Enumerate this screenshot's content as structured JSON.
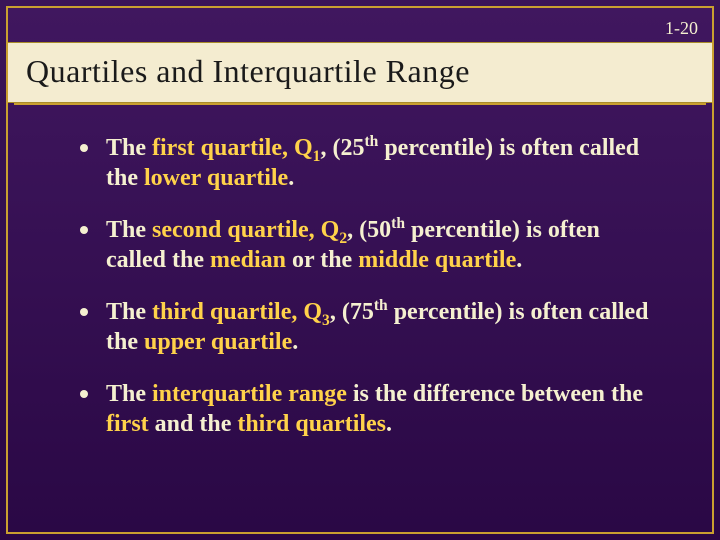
{
  "page_number": "1-20",
  "title": "Quartiles and Interquartile Range",
  "colors": {
    "background_top": "#40175f",
    "background_bottom": "#2a0845",
    "frame_border": "#c9a030",
    "title_bar_bg": "#f4ecd0",
    "title_text": "#1a1a1a",
    "body_text": "#f5f0d0",
    "highlight_text": "#ffd24a"
  },
  "typography": {
    "title_fontsize": 32,
    "body_fontsize": 24,
    "font_family": "Times New Roman"
  },
  "bullets": [
    {
      "segments": [
        {
          "text": "The "
        },
        {
          "text": "first quartile, Q",
          "highlight": true
        },
        {
          "text": "1",
          "highlight": true,
          "sub": true
        },
        {
          "text": ", (25"
        },
        {
          "text": "th",
          "sup": true
        },
        {
          "text": " percentile) is often called the "
        },
        {
          "text": "lower quartile",
          "highlight": true
        },
        {
          "text": "."
        }
      ]
    },
    {
      "segments": [
        {
          "text": "The "
        },
        {
          "text": "second quartile, Q",
          "highlight": true
        },
        {
          "text": "2",
          "highlight": true,
          "sub": true
        },
        {
          "text": ", (50"
        },
        {
          "text": "th",
          "sup": true
        },
        {
          "text": " percentile) is often called the "
        },
        {
          "text": "median",
          "highlight": true
        },
        {
          "text": " or the "
        },
        {
          "text": "middle quartile",
          "highlight": true
        },
        {
          "text": "."
        }
      ]
    },
    {
      "segments": [
        {
          "text": "The "
        },
        {
          "text": "third quartile, Q",
          "highlight": true
        },
        {
          "text": "3",
          "highlight": true,
          "sub": true
        },
        {
          "text": ", (75"
        },
        {
          "text": "th",
          "sup": true
        },
        {
          "text": " percentile) is often called the "
        },
        {
          "text": "upper quartile",
          "highlight": true
        },
        {
          "text": "."
        }
      ]
    },
    {
      "segments": [
        {
          "text": "The "
        },
        {
          "text": "interquartile range",
          "highlight": true
        },
        {
          "text": " is the difference between the "
        },
        {
          "text": "first",
          "highlight": true
        },
        {
          "text": " and the "
        },
        {
          "text": "third quartiles",
          "highlight": true
        },
        {
          "text": "."
        }
      ]
    }
  ]
}
